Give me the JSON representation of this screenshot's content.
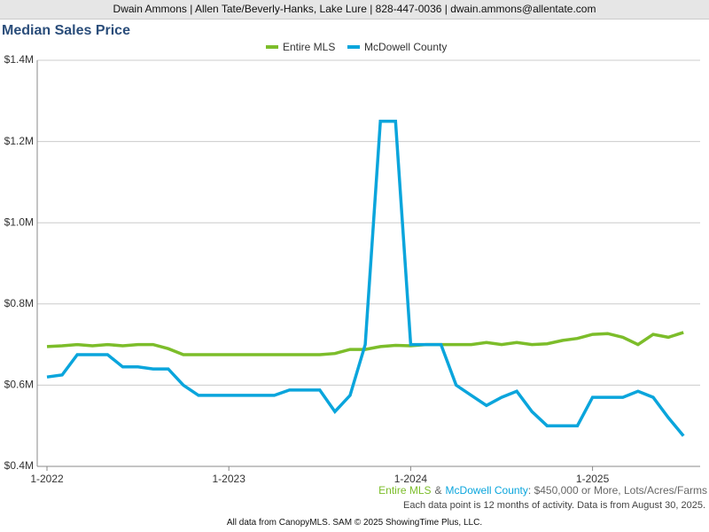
{
  "header": "Dwain Ammons | Allen Tate/Beverly-Hanks, Lake Lure | 828-447-0036 | dwain.ammons@allentate.com",
  "chart_data": {
    "type": "line",
    "title": "Median Sales Price",
    "categories": [
      "1-2022",
      null,
      null,
      null,
      null,
      null,
      null,
      null,
      null,
      null,
      null,
      null,
      "1-2023",
      null,
      null,
      null,
      null,
      null,
      null,
      null,
      null,
      null,
      null,
      null,
      "1-2024",
      null,
      null,
      null,
      null,
      null,
      null,
      null,
      null,
      null,
      null,
      null,
      "1-2025",
      null,
      null,
      null,
      null,
      null,
      null
    ],
    "series": [
      {
        "name": "Entire MLS",
        "color": "#7cbd2a",
        "values": [
          695000,
          697000,
          700000,
          697000,
          700000,
          697000,
          700000,
          700000,
          690000,
          675000,
          675000,
          675000,
          675000,
          675000,
          675000,
          675000,
          675000,
          675000,
          675000,
          678000,
          688000,
          688000,
          695000,
          698000,
          697000,
          700000,
          700000,
          700000,
          700000,
          705000,
          700000,
          705000,
          700000,
          702000,
          710000,
          715000,
          725000,
          727000,
          718000,
          700000,
          725000,
          718000,
          730000
        ]
      },
      {
        "name": "McDowell County",
        "color": "#0aa5dc",
        "values": [
          620000,
          625000,
          675000,
          675000,
          675000,
          645000,
          645000,
          640000,
          640000,
          600000,
          575000,
          575000,
          575000,
          575000,
          575000,
          575000,
          588000,
          588000,
          588000,
          535000,
          575000,
          700000,
          1250000,
          1250000,
          700000,
          700000,
          700000,
          600000,
          575000,
          550000,
          570000,
          585000,
          535000,
          500000,
          500000,
          500000,
          570000,
          570000,
          570000,
          585000,
          570000,
          520000,
          475000
        ]
      }
    ],
    "ylim": [
      400000,
      1400000
    ],
    "yticks": [
      {
        "value": 400000,
        "label": "$0.4M"
      },
      {
        "value": 600000,
        "label": "$0.6M"
      },
      {
        "value": 800000,
        "label": "$0.8M"
      },
      {
        "value": 1000000,
        "label": "$1.0M"
      },
      {
        "value": 1200000,
        "label": "$1.2M"
      },
      {
        "value": 1400000,
        "label": "$1.4M"
      }
    ],
    "grid": true,
    "legend": "top",
    "criteria_joiner": "&",
    "criteria": ": $450,000 or More, Lots/Acres/Farms",
    "note": "Each data point is 12 months of activity. Data is from August 30, 2025."
  },
  "footer": "All data from CanopyMLS. SAM © 2025 ShowingTime Plus, LLC."
}
